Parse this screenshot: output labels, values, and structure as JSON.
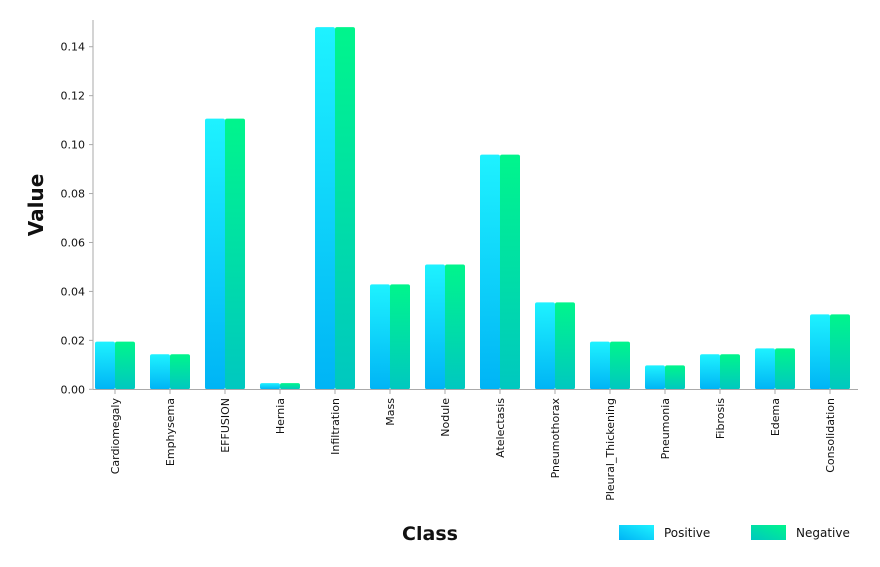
{
  "chart_data": {
    "type": "bar",
    "title": "",
    "xlabel": "Class",
    "ylabel": "Value",
    "ylim": [
      0,
      0.15
    ],
    "yticks": [
      "0.00",
      "0.02",
      "0.04",
      "0.06",
      "0.08",
      "0.10",
      "0.12",
      "0.14"
    ],
    "grid": false,
    "legend_placement": "bottom-right",
    "categories": [
      "Cardiomegaly",
      "Emphysema",
      "EFFUSION",
      "Hernia",
      "Infiltration",
      "Mass",
      "Nodule",
      "Atelectasis",
      "Pneumothorax",
      "Pleural_Thickening",
      "Pneumonia",
      "Fibrosis",
      "Edema",
      "Consolidation"
    ],
    "series": [
      {
        "name": "Positive",
        "colors": [
          "#00b4f5",
          "#1ef2ff"
        ],
        "values": [
          0.0195,
          0.0143,
          0.1106,
          0.0025,
          0.148,
          0.0429,
          0.051,
          0.0959,
          0.0355,
          0.0195,
          0.0098,
          0.0143,
          0.0167,
          0.0306
        ]
      },
      {
        "name": "Negative",
        "colors": [
          "#00c8c0",
          "#00f58c"
        ],
        "values": [
          0.0195,
          0.0143,
          0.1106,
          0.0025,
          0.148,
          0.0429,
          0.051,
          0.0959,
          0.0355,
          0.0195,
          0.0098,
          0.0143,
          0.0167,
          0.0306
        ]
      }
    ]
  }
}
